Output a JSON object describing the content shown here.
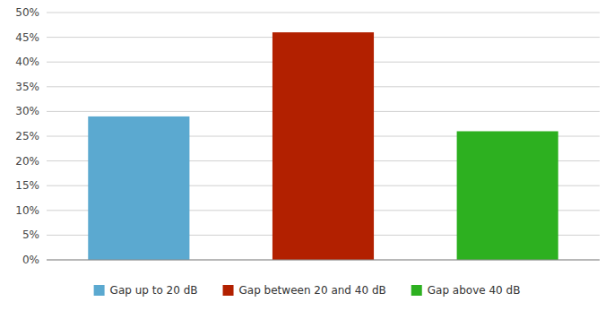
{
  "chart_data": {
    "type": "bar",
    "categories": [
      "Gap up to 20 dB",
      "Gap between 20 and 40 dB",
      "Gap above 40 dB"
    ],
    "values": [
      29,
      46,
      26
    ],
    "colors": [
      "#5BA9D0",
      "#B22000",
      "#2DB020"
    ],
    "ylim": [
      0,
      50
    ],
    "yticks": [
      {
        "value": 0,
        "label": "0%"
      },
      {
        "value": 5,
        "label": "5%"
      },
      {
        "value": 10,
        "label": "10%"
      },
      {
        "value": 15,
        "label": "15%"
      },
      {
        "value": 20,
        "label": "20%"
      },
      {
        "value": 25,
        "label": "25%"
      },
      {
        "value": 30,
        "label": "30%"
      },
      {
        "value": 35,
        "label": "35%"
      },
      {
        "value": 40,
        "label": "40%"
      },
      {
        "value": 45,
        "label": "45%"
      },
      {
        "value": 50,
        "label": "50%"
      }
    ],
    "grid": true,
    "legend": "bottom",
    "tick_labels": "y"
  }
}
